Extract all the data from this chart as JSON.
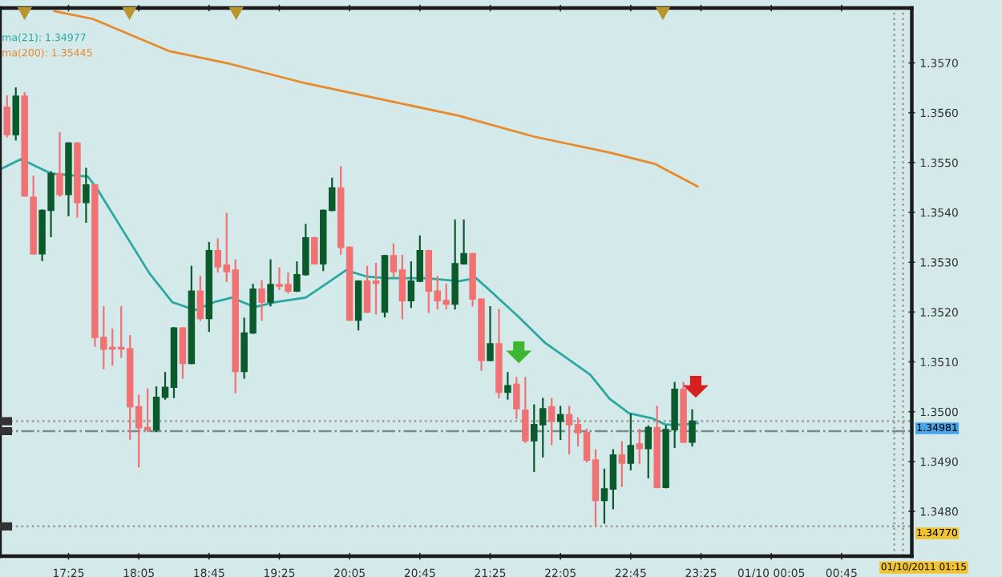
{
  "chart_data": {
    "type": "candlestick",
    "x": [
      "2011-01-09T16:50",
      "2011-01-09T16:55",
      "2011-01-09T17:00",
      "2011-01-09T17:05",
      "2011-01-09T17:10",
      "2011-01-09T17:15",
      "2011-01-09T17:20",
      "2011-01-09T17:25",
      "2011-01-09T17:30",
      "2011-01-09T17:35",
      "2011-01-09T17:40",
      "2011-01-09T17:45",
      "2011-01-09T17:50",
      "2011-01-09T17:55",
      "2011-01-09T18:00",
      "2011-01-09T18:05",
      "2011-01-09T18:10",
      "2011-01-09T18:15",
      "2011-01-09T18:20",
      "2011-01-09T18:25",
      "2011-01-09T18:30",
      "2011-01-09T18:35",
      "2011-01-09T18:40",
      "2011-01-09T18:45",
      "2011-01-09T18:50",
      "2011-01-09T18:55",
      "2011-01-09T19:00",
      "2011-01-09T19:05",
      "2011-01-09T19:10",
      "2011-01-09T19:15",
      "2011-01-09T19:20",
      "2011-01-09T19:25",
      "2011-01-09T19:30",
      "2011-01-09T19:35",
      "2011-01-09T19:40",
      "2011-01-09T19:45",
      "2011-01-09T19:50",
      "2011-01-09T19:55",
      "2011-01-09T20:00",
      "2011-01-09T20:05",
      "2011-01-09T20:10",
      "2011-01-09T20:15",
      "2011-01-09T20:20",
      "2011-01-09T20:25",
      "2011-01-09T20:30",
      "2011-01-09T20:35",
      "2011-01-09T20:40",
      "2011-01-09T20:45",
      "2011-01-09T20:50",
      "2011-01-09T20:55",
      "2011-01-09T21:00",
      "2011-01-09T21:05",
      "2011-01-09T21:10",
      "2011-01-09T21:15",
      "2011-01-09T21:20",
      "2011-01-09T21:25",
      "2011-01-09T21:30",
      "2011-01-09T21:35",
      "2011-01-09T21:40",
      "2011-01-09T21:45",
      "2011-01-09T21:50",
      "2011-01-09T21:55",
      "2011-01-09T22:00",
      "2011-01-09T22:05",
      "2011-01-09T22:10",
      "2011-01-09T22:15",
      "2011-01-09T22:20",
      "2011-01-09T22:25",
      "2011-01-09T22:30",
      "2011-01-09T22:35",
      "2011-01-09T22:40",
      "2011-01-09T22:45",
      "2011-01-09T22:50",
      "2011-01-09T22:55",
      "2011-01-09T23:00",
      "2011-01-09T23:05",
      "2011-01-09T23:10",
      "2011-01-09T23:15",
      "2011-01-09T23:20"
    ],
    "ohlc": [
      [
        1.35611,
        1.35633,
        1.35552,
        1.35556
      ],
      [
        1.35556,
        1.35649,
        1.35546,
        1.35633
      ],
      [
        1.35633,
        1.3564,
        1.35433,
        1.35433
      ],
      [
        1.3543,
        1.35472,
        1.35317,
        1.35317
      ],
      [
        1.35317,
        1.35404,
        1.35304,
        1.35404
      ],
      [
        1.35404,
        1.35481,
        1.35352,
        1.35478
      ],
      [
        1.35478,
        1.35559,
        1.35433,
        1.35436
      ],
      [
        1.35436,
        1.35539,
        1.35394,
        1.35539
      ],
      [
        1.35539,
        1.35539,
        1.35391,
        1.3542
      ],
      [
        1.3542,
        1.35488,
        1.35381,
        1.35455
      ],
      [
        1.35455,
        1.35455,
        1.35132,
        1.35149
      ],
      [
        1.35149,
        1.3521,
        1.35087,
        1.35126
      ],
      [
        1.35129,
        1.35165,
        1.35094,
        1.35126
      ],
      [
        1.35129,
        1.3521,
        1.3511,
        1.35126
      ],
      [
        1.35126,
        1.35152,
        1.34945,
        1.3501
      ],
      [
        1.3501,
        1.35032,
        1.3489,
        1.34968
      ],
      [
        1.34968,
        1.35045,
        1.34961,
        1.34964
      ],
      [
        1.34964,
        1.35049,
        1.34961,
        1.35029
      ],
      [
        1.35029,
        1.35078,
        1.35026,
        1.35049
      ],
      [
        1.35049,
        1.35168,
        1.35029,
        1.35168
      ],
      [
        1.35168,
        1.35168,
        1.35068,
        1.35097
      ],
      [
        1.35097,
        1.35291,
        1.35097,
        1.35242
      ],
      [
        1.35242,
        1.35271,
        1.35184,
        1.35187
      ],
      [
        1.35187,
        1.35339,
        1.35162,
        1.35323
      ],
      [
        1.35323,
        1.35346,
        1.35281,
        1.35291
      ],
      [
        1.35294,
        1.35397,
        1.35262,
        1.35281
      ],
      [
        1.35284,
        1.35304,
        1.35039,
        1.35081
      ],
      [
        1.35081,
        1.35187,
        1.35068,
        1.35158
      ],
      [
        1.35158,
        1.35255,
        1.35158,
        1.35246
      ],
      [
        1.35246,
        1.35262,
        1.35184,
        1.3522
      ],
      [
        1.3522,
        1.35304,
        1.35213,
        1.35255
      ],
      [
        1.35255,
        1.35288,
        1.35246,
        1.35252
      ],
      [
        1.35255,
        1.35278,
        1.35239,
        1.35242
      ],
      [
        1.35242,
        1.353,
        1.35242,
        1.35275
      ],
      [
        1.35275,
        1.35375,
        1.35275,
        1.35349
      ],
      [
        1.35349,
        1.35349,
        1.35297,
        1.35297
      ],
      [
        1.35297,
        1.35404,
        1.35284,
        1.35404
      ],
      [
        1.35404,
        1.35468,
        1.35404,
        1.35449
      ],
      [
        1.35449,
        1.35491,
        1.35317,
        1.3533
      ],
      [
        1.3533,
        1.3533,
        1.35184,
        1.35184
      ],
      [
        1.35184,
        1.35262,
        1.35165,
        1.35262
      ],
      [
        1.35262,
        1.35291,
        1.352,
        1.352
      ],
      [
        1.35262,
        1.35297,
        1.35197,
        1.35258
      ],
      [
        1.352,
        1.35313,
        1.35191,
        1.35313
      ],
      [
        1.35313,
        1.35336,
        1.35271,
        1.35281
      ],
      [
        1.35284,
        1.35313,
        1.35187,
        1.35223
      ],
      [
        1.35223,
        1.353,
        1.3521,
        1.35262
      ],
      [
        1.35262,
        1.35352,
        1.35262,
        1.35323
      ],
      [
        1.35323,
        1.35323,
        1.352,
        1.35242
      ],
      [
        1.35242,
        1.35271,
        1.35207,
        1.35223
      ],
      [
        1.35223,
        1.35255,
        1.35207,
        1.35216
      ],
      [
        1.35216,
        1.35384,
        1.35207,
        1.35297
      ],
      [
        1.35297,
        1.35384,
        1.35297,
        1.35317
      ],
      [
        1.35317,
        1.35317,
        1.35213,
        1.35226
      ],
      [
        1.35226,
        1.35226,
        1.35084,
        1.35103
      ],
      [
        1.35103,
        1.3521,
        1.35103,
        1.35136
      ],
      [
        1.35136,
        1.35204,
        1.35029,
        1.35039
      ],
      [
        1.35039,
        1.35078,
        1.35026,
        1.35052
      ],
      [
        1.35055,
        1.35068,
        1.34987,
        1.35006
      ],
      [
        1.35003,
        1.35068,
        1.34939,
        1.34942
      ],
      [
        1.34942,
        1.35013,
        1.34881,
        1.34974
      ],
      [
        1.34974,
        1.35026,
        1.3491,
        1.35006
      ],
      [
        1.3501,
        1.35026,
        1.34935,
        1.34981
      ],
      [
        1.34981,
        1.3501,
        1.34945,
        1.34994
      ],
      [
        1.34994,
        1.3501,
        1.34916,
        1.34974
      ],
      [
        1.34974,
        1.34987,
        1.34932,
        1.34958
      ],
      [
        1.34958,
        1.34964,
        1.349,
        1.34903
      ],
      [
        1.34903,
        1.34923,
        1.34771,
        1.34822
      ],
      [
        1.34822,
        1.34884,
        1.34777,
        1.34845
      ],
      [
        1.34845,
        1.34923,
        1.34806,
        1.34913
      ],
      [
        1.34913,
        1.34939,
        1.34851,
        1.34897
      ],
      [
        1.34897,
        1.34994,
        1.34884,
        1.34932
      ],
      [
        1.34935,
        1.34964,
        1.34897,
        1.34926
      ],
      [
        1.34926,
        1.34971,
        1.34868,
        1.34968
      ],
      [
        1.34968,
        1.3501,
        1.34848,
        1.34848
      ],
      [
        1.34848,
        1.34971,
        1.34848,
        1.34964
      ],
      [
        1.34964,
        1.35058,
        1.34929,
        1.35045
      ],
      [
        1.35045,
        1.35058,
        1.34939,
        1.34939
      ],
      [
        1.34939,
        1.35003,
        1.34932,
        1.34981
      ]
    ],
    "series": [
      {
        "type": "line",
        "color": "#2aa7a0",
        "x": [
          "2011-01-09T16:47",
          "2011-01-09T16:58",
          "2011-01-09T17:15",
          "2011-01-09T17:36",
          "2011-01-09T17:41",
          "2011-01-09T17:58",
          "2011-01-09T18:11",
          "2011-01-09T18:24",
          "2011-01-09T18:37",
          "2011-01-09T18:48",
          "2011-01-09T18:58",
          "2011-01-09T19:11",
          "2011-01-09T19:23",
          "2011-01-09T19:40",
          "2011-01-09T19:51",
          "2011-01-09T20:03",
          "2011-01-09T20:15",
          "2011-01-09T20:26",
          "2011-01-09T20:49",
          "2011-01-09T21:07",
          "2011-01-09T21:17",
          "2011-01-09T21:24",
          "2011-01-09T21:41",
          "2011-01-09T21:56",
          "2011-01-09T22:22",
          "2011-01-09T22:33",
          "2011-01-09T22:44",
          "2011-01-09T22:57",
          "2011-01-09T23:05",
          "2011-01-09T23:14",
          "2011-01-09T23:23"
        ],
        "values": [
          1.35488,
          1.35507,
          1.35478,
          1.35472,
          1.35449,
          1.35352,
          1.35278,
          1.3522,
          1.35204,
          1.3522,
          1.35229,
          1.3521,
          1.3522,
          1.35229,
          1.35255,
          1.35284,
          1.35271,
          1.35268,
          1.35268,
          1.35262,
          1.35268,
          1.35246,
          1.35191,
          1.35139,
          1.35074,
          1.35026,
          1.34997,
          1.34987,
          1.34974,
          1.34974,
          1.34977
        ]
      },
      {
        "type": "line",
        "color": "#e8892a",
        "x": [
          "2011-01-09T17:17",
          "2011-01-09T17:39",
          "2011-01-09T18:22",
          "2011-01-09T18:57",
          "2011-01-09T19:40",
          "2011-01-09T20:23",
          "2011-01-09T21:07",
          "2011-01-09T21:50",
          "2011-01-09T22:33",
          "2011-01-09T22:59",
          "2011-01-09T23:23"
        ],
        "values": [
          1.35804,
          1.35788,
          1.35724,
          1.35698,
          1.35659,
          1.35627,
          1.35594,
          1.35552,
          1.3552,
          1.35497,
          1.35452
        ]
      }
    ],
    "colors": [
      "#f07272",
      "#0b5a2c",
      "#f07272",
      "#f07272",
      "#0b5a2c",
      "#0b5a2c",
      "#f07272",
      "#0b5a2c",
      "#f07272",
      "#0b5a2c",
      "#f07272",
      "#f07272",
      "#f07272",
      "#f07272",
      "#f07272",
      "#f07272",
      "#f07272",
      "#0b5a2c",
      "#0b5a2c",
      "#0b5a2c",
      "#f07272",
      "#0b5a2c",
      "#f07272",
      "#0b5a2c",
      "#f07272",
      "#f07272",
      "#f07272",
      "#0b5a2c",
      "#0b5a2c",
      "#f07272",
      "#0b5a2c",
      "#f07272",
      "#f07272",
      "#0b5a2c",
      "#0b5a2c",
      "#f07272",
      "#0b5a2c",
      "#0b5a2c",
      "#f07272",
      "#f07272",
      "#0b5a2c",
      "#f07272",
      "#f07272",
      "#0b5a2c",
      "#f07272",
      "#f07272",
      "#0b5a2c",
      "#0b5a2c",
      "#f07272",
      "#f07272",
      "#f07272",
      "#0b5a2c",
      "#0b5a2c",
      "#f07272",
      "#f07272",
      "#0b5a2c",
      "#f07272",
      "#0b5a2c",
      "#f07272",
      "#f07272",
      "#0b5a2c",
      "#0b5a2c",
      "#f07272",
      "#0b5a2c",
      "#f07272",
      "#f07272",
      "#f07272",
      "#f07272",
      "#0b5a2c",
      "#0b5a2c",
      "#f07272",
      "#0b5a2c",
      "#f07272",
      "#0b5a2c",
      "#f07272",
      "#0b5a2c",
      "#0b5a2c",
      "#f07272",
      "#0b5a2c"
    ],
    "xlim": [
      "2011-01-09T16:46",
      "2011-01-10T01:25"
    ],
    "xticks": [
      {
        "value": "2011-01-09T17:25",
        "label": "17:25"
      },
      {
        "value": "2011-01-09T18:05",
        "label": "18:05"
      },
      {
        "value": "2011-01-09T18:45",
        "label": "18:45"
      },
      {
        "value": "2011-01-09T19:25",
        "label": "19:25"
      },
      {
        "value": "2011-01-09T20:05",
        "label": "20:05"
      },
      {
        "value": "2011-01-09T20:45",
        "label": "20:45"
      },
      {
        "value": "2011-01-09T21:25",
        "label": "21:25"
      },
      {
        "value": "2011-01-09T22:05",
        "label": "22:05"
      },
      {
        "value": "2011-01-09T22:45",
        "label": "22:45"
      },
      {
        "value": "2011-01-09T23:25",
        "label": "23:25"
      },
      {
        "value": "2011-01-10T00:05",
        "label": "01/10 00:05"
      },
      {
        "value": "2011-01-10T00:45",
        "label": "00:45"
      }
    ],
    "ylim": [
      1.3471,
      1.3581
    ],
    "yticks": [
      {
        "value": 1.348,
        "label": "1.3480"
      },
      {
        "value": 1.349,
        "label": "1.3490"
      },
      {
        "value": 1.35,
        "label": "1.3500"
      },
      {
        "value": 1.351,
        "label": "1.3510"
      },
      {
        "value": 1.352,
        "label": "1.3520"
      },
      {
        "value": 1.353,
        "label": "1.3530"
      },
      {
        "value": 1.354,
        "label": "1.3540"
      },
      {
        "value": 1.355,
        "label": "1.3550"
      },
      {
        "value": 1.356,
        "label": "1.3560"
      },
      {
        "value": 1.357,
        "label": "1.3570"
      }
    ],
    "ref_lines": [
      {
        "axis": "y",
        "value": 1.34981,
        "label": "1.34981",
        "color": "#999999",
        "line_style": "dotted"
      },
      {
        "axis": "y",
        "value": 1.34961,
        "color": "#7a8a8a",
        "line_style": "dashdot"
      },
      {
        "axis": "y",
        "value": 1.3477,
        "label": "1.34770",
        "color": "#999999",
        "line_style": "dotted"
      },
      {
        "axis": "x",
        "value": "2011-01-10T01:15",
        "label": "01/10/2011 01:15",
        "color": "#999999",
        "line_style": "dotted"
      },
      {
        "axis": "x",
        "value": "2011-01-10T01:20",
        "color": "#999999",
        "line_style": "dotted"
      }
    ],
    "annotations": [
      "ma(21): 1.34977",
      "ma(200): 1.35445"
    ],
    "grid": false
  }
}
